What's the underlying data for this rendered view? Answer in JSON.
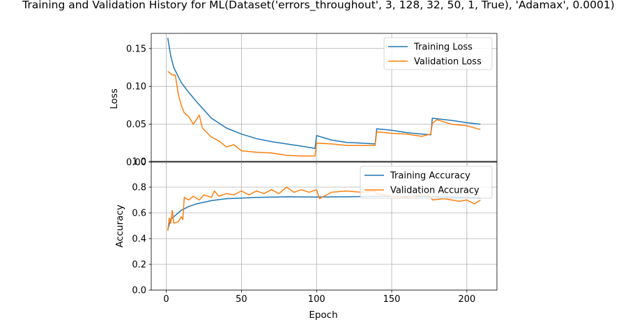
{
  "chart_data": [
    {
      "type": "line",
      "title": "Training and Validation History for ML(Dataset('errors_throughout', 3, 128, 32, 50, 1, True), 'Adamax', 0.0001)",
      "xlabel": "",
      "ylabel": "Loss",
      "xlim": [
        -10,
        220
      ],
      "ylim": [
        0.0,
        0.17
      ],
      "yticks": [
        "0.00",
        "0.05",
        "0.10",
        "0.15"
      ],
      "grid": true,
      "legend_position": "top-right",
      "series": [
        {
          "name": "Training Loss",
          "color": "#1f77b4",
          "points": [
            [
              1,
              0.164
            ],
            [
              3,
              0.14
            ],
            [
              5,
              0.125
            ],
            [
              10,
              0.105
            ],
            [
              15,
              0.092
            ],
            [
              20,
              0.08
            ],
            [
              30,
              0.058
            ],
            [
              40,
              0.045
            ],
            [
              50,
              0.037
            ],
            [
              60,
              0.031
            ],
            [
              70,
              0.027
            ],
            [
              80,
              0.024
            ],
            [
              90,
              0.021
            ],
            [
              99,
              0.018
            ],
            [
              100,
              0.035
            ],
            [
              110,
              0.029
            ],
            [
              120,
              0.026
            ],
            [
              130,
              0.025
            ],
            [
              139,
              0.024
            ],
            [
              140,
              0.044
            ],
            [
              150,
              0.042
            ],
            [
              160,
              0.039
            ],
            [
              170,
              0.037
            ],
            [
              176,
              0.036
            ],
            [
              177,
              0.058
            ],
            [
              190,
              0.055
            ],
            [
              200,
              0.052
            ],
            [
              209,
              0.05
            ]
          ]
        },
        {
          "name": "Validation Loss",
          "color": "#ff7f0e",
          "points": [
            [
              1,
              0.12
            ],
            [
              4,
              0.115
            ],
            [
              6,
              0.115
            ],
            [
              8,
              0.09
            ],
            [
              10,
              0.075
            ],
            [
              12,
              0.065
            ],
            [
              15,
              0.06
            ],
            [
              18,
              0.05
            ],
            [
              22,
              0.062
            ],
            [
              24,
              0.045
            ],
            [
              30,
              0.033
            ],
            [
              35,
              0.028
            ],
            [
              40,
              0.02
            ],
            [
              45,
              0.023
            ],
            [
              50,
              0.015
            ],
            [
              60,
              0.013
            ],
            [
              70,
              0.012
            ],
            [
              80,
              0.009
            ],
            [
              90,
              0.008
            ],
            [
              99,
              0.008
            ],
            [
              100,
              0.025
            ],
            [
              110,
              0.024
            ],
            [
              120,
              0.022
            ],
            [
              130,
              0.022
            ],
            [
              139,
              0.022
            ],
            [
              140,
              0.04
            ],
            [
              150,
              0.038
            ],
            [
              160,
              0.037
            ],
            [
              170,
              0.034
            ],
            [
              176,
              0.037
            ],
            [
              177,
              0.051
            ],
            [
              180,
              0.056
            ],
            [
              190,
              0.05
            ],
            [
              200,
              0.048
            ],
            [
              209,
              0.043
            ]
          ]
        }
      ]
    },
    {
      "type": "line",
      "title": "",
      "xlabel": "Epoch",
      "ylabel": "Accuracy",
      "xlim": [
        -10,
        220
      ],
      "ylim": [
        0.0,
        1.0
      ],
      "xticks": [
        "0",
        "50",
        "100",
        "150",
        "200"
      ],
      "yticks": [
        "0.0",
        "0.2",
        "0.4",
        "0.6",
        "0.8",
        "1.0"
      ],
      "grid": true,
      "legend_position": "top-right",
      "series": [
        {
          "name": "Training Accuracy",
          "color": "#1f77b4",
          "points": [
            [
              1,
              0.47
            ],
            [
              3,
              0.55
            ],
            [
              6,
              0.58
            ],
            [
              10,
              0.62
            ],
            [
              15,
              0.65
            ],
            [
              20,
              0.67
            ],
            [
              30,
              0.695
            ],
            [
              40,
              0.71
            ],
            [
              50,
              0.715
            ],
            [
              60,
              0.72
            ],
            [
              80,
              0.725
            ],
            [
              100,
              0.723
            ],
            [
              120,
              0.725
            ],
            [
              140,
              0.728
            ],
            [
              160,
              0.727
            ],
            [
              180,
              0.725
            ],
            [
              200,
              0.72
            ],
            [
              209,
              0.715
            ]
          ]
        },
        {
          "name": "Validation Accuracy",
          "color": "#ff7f0e",
          "points": [
            [
              1,
              0.46
            ],
            [
              2,
              0.56
            ],
            [
              3,
              0.52
            ],
            [
              4,
              0.62
            ],
            [
              5,
              0.52
            ],
            [
              8,
              0.53
            ],
            [
              10,
              0.57
            ],
            [
              11,
              0.55
            ],
            [
              12,
              0.72
            ],
            [
              15,
              0.7
            ],
            [
              18,
              0.73
            ],
            [
              22,
              0.7
            ],
            [
              25,
              0.74
            ],
            [
              30,
              0.72
            ],
            [
              32,
              0.77
            ],
            [
              35,
              0.73
            ],
            [
              40,
              0.75
            ],
            [
              45,
              0.74
            ],
            [
              50,
              0.77
            ],
            [
              55,
              0.74
            ],
            [
              60,
              0.77
            ],
            [
              65,
              0.75
            ],
            [
              70,
              0.78
            ],
            [
              75,
              0.75
            ],
            [
              80,
              0.8
            ],
            [
              85,
              0.76
            ],
            [
              90,
              0.78
            ],
            [
              95,
              0.76
            ],
            [
              100,
              0.78
            ],
            [
              102,
              0.71
            ],
            [
              110,
              0.76
            ],
            [
              120,
              0.77
            ],
            [
              130,
              0.76
            ],
            [
              139,
              0.77
            ],
            [
              140,
              0.75
            ],
            [
              150,
              0.73
            ],
            [
              160,
              0.72
            ],
            [
              170,
              0.74
            ],
            [
              176,
              0.73
            ],
            [
              177,
              0.7
            ],
            [
              185,
              0.71
            ],
            [
              195,
              0.69
            ],
            [
              200,
              0.7
            ],
            [
              205,
              0.67
            ],
            [
              209,
              0.7
            ]
          ]
        }
      ]
    }
  ]
}
